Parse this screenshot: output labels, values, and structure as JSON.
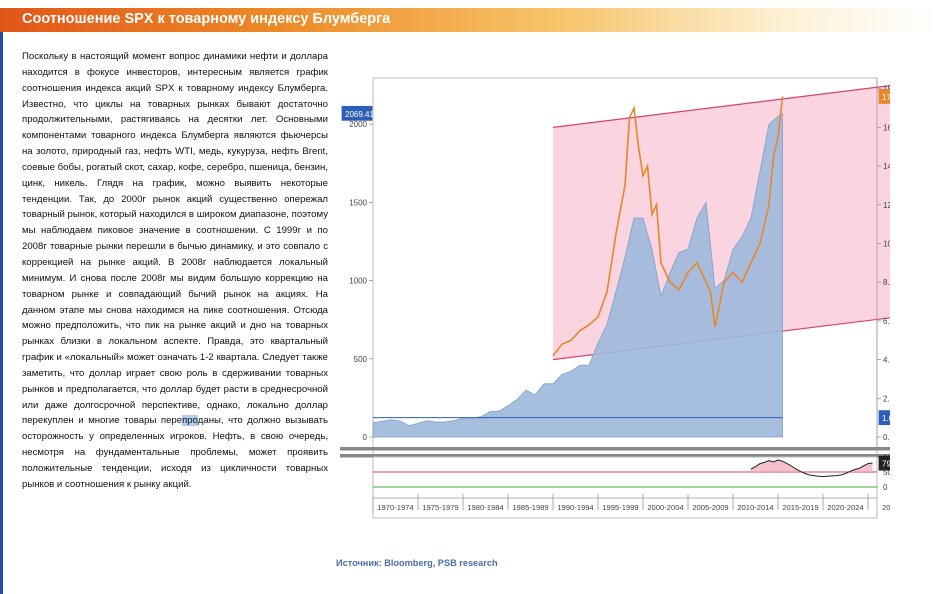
{
  "header": {
    "title": "Соотношение  SPX к товарному индексу Блумберга"
  },
  "body": {
    "before_highlight": "Поскольку в настоящий момент вопрос динамики нефти и доллара находится в фокусе инвесторов, интересным является график соотношения индекса акций SPX к товарному индексу Блумберга. Известно, что циклы на товарных рынках бывают достаточно продолжительными, растягиваясь на десятки лет. Основными компонентами товарного индекса Блумберга являются фьючерсы на золото, природный газ, нефть WTI, медь, кукуруза, нефть Brent, соевые бобы, рогатый скот, сахар, кофе, серебро, пшеница, бензин, цинк, никель.  Глядя на график, можно выявить некоторые тенденции. Так, до 2000г рынок акций существенно опережал товарный рынок, который находился в широком диапазоне, поэтому мы наблюдаем пиковое значение в соотношении. С 1999г и по 2008г товарные рынки перешли в бычью динамику, и это совпало  с коррекцией на рынке акций. В 2008г наблюдается локальный минимум. И снова после 2008г мы видим большую коррекцию на товарном рынке и совпадающий бычий рынок на акциях. На данном этапе мы снова находимся на пике соотношения. Отсюда можно предположить, что пик на рынке акций и дно на товарных рынках близки в локальном аспекте. Правда, это квартальный график и «локальный» может означать 1-2 квартала. Следует также заметить, что доллар играет свою роль в сдерживании товарных рынков и предполагается, что доллар будет расти в среднесрочной или даже долгосрочной перспективе, однако, локально доллар перекуплен и многие товары пере",
    "highlight": "про",
    "after_highlight": "даны, что должно вызывать осторожность у определенных игроков. Нефть, в свою очередь, несмотря на фундаментальные проблемы, может проявить положительные тенденции, исходя из цикличности товарных рынков и соотношения к рынку акций."
  },
  "source": "Источник: Bloomberg, PSB research",
  "chart_data": {
    "type": "area",
    "x_tick_labels": [
      "1970-1974",
      "1975-1979",
      "1980-1984",
      "1985-1989",
      "1990-1994",
      "1995-1999",
      "2000-2004",
      "2005-2009",
      "2010-2014",
      "2015-2019",
      "2020-2024",
      "2025"
    ],
    "xlim": [
      1970,
      2026
    ],
    "left_axis": {
      "ticks": [
        "0",
        "500",
        "1000",
        "1500",
        "2000"
      ],
      "ylim": [
        -100,
        2150
      ],
      "last_value": "2069.41"
    },
    "right_axis": {
      "ticks": [
        "0.00",
        "2.00",
        "4.00",
        "6.00",
        "8.00",
        "10.00",
        "12.00",
        "14.00",
        "16.00",
        "18.00"
      ],
      "ylim": [
        -0.6,
        18.2
      ],
      "last_value": "17.6004",
      "line_label": "1.00"
    },
    "lower_panel": {
      "ticks": [
        "0",
        "50",
        "100"
      ],
      "last_value": "79.5226"
    },
    "series": [
      {
        "axis": "left",
        "color": "#8fb0d8",
        "x": [
          1970,
          1971,
          1972,
          1973,
          1974,
          1975,
          1976,
          1977,
          1978,
          1979,
          1980,
          1981,
          1982,
          1983,
          1984,
          1985,
          1986,
          1987,
          1988,
          1989,
          1990,
          1991,
          1992,
          1993,
          1994,
          1995,
          1996,
          1997,
          1998,
          1999,
          2000,
          2001,
          2002,
          2003,
          2004,
          2005,
          2006,
          2007,
          2008,
          2009,
          2010,
          2011,
          2012,
          2013,
          2014,
          2015,
          2015.5
        ],
        "values": [
          92,
          100,
          110,
          102,
          72,
          88,
          104,
          96,
          96,
          104,
          122,
          120,
          130,
          162,
          165,
          200,
          240,
          300,
          270,
          340,
          340,
          400,
          420,
          460,
          460,
          600,
          720,
          930,
          1150,
          1400,
          1400,
          1200,
          900,
          1050,
          1180,
          1200,
          1400,
          1500,
          950,
          1000,
          1200,
          1280,
          1400,
          1700,
          2000,
          2050,
          2069
        ]
      },
      {
        "axis": "right",
        "color": "#e8862a",
        "x": [
          1990,
          1991,
          1992,
          1993,
          1994,
          1995,
          1996,
          1997,
          1998,
          1998.5,
          1999,
          1999.5,
          2000,
          2000.5,
          2001,
          2001.5,
          2002,
          2003,
          2003.5,
          2004,
          2005,
          2006,
          2007,
          2007.5,
          2008,
          2008.5,
          2009,
          2010,
          2011,
          2012,
          2013,
          2014,
          2014.5,
          2015,
          2015.5
        ],
        "values": [
          4.2,
          4.8,
          5.0,
          5.5,
          5.8,
          6.2,
          7.5,
          10.5,
          13.0,
          16.5,
          17.0,
          15.0,
          13.5,
          14.0,
          11.5,
          12.0,
          9.0,
          8.0,
          7.8,
          7.6,
          8.5,
          9.0,
          8.0,
          7.5,
          5.7,
          6.8,
          8.0,
          8.5,
          8.0,
          9.0,
          10.0,
          12.0,
          14.5,
          15.5,
          17.6
        ]
      },
      {
        "axis": "lower",
        "color": "#222222",
        "x": [
          2012,
          2012.5,
          2013,
          2013.5,
          2014,
          2014.5,
          2015,
          2015.5,
          2016,
          2016.5,
          2017,
          2017.5,
          2018,
          2018.5,
          2019,
          2019.5,
          2020,
          2020.5,
          2021,
          2021.5,
          2022,
          2022.5,
          2023,
          2023.5,
          2024,
          2024.5,
          2025,
          2025.5
        ],
        "values": [
          60,
          68,
          78,
          82,
          88,
          84,
          90,
          86,
          78,
          70,
          60,
          52,
          45,
          40,
          38,
          36,
          35,
          36,
          37,
          38,
          40,
          45,
          52,
          58,
          62,
          70,
          78,
          80
        ]
      }
    ],
    "channel": {
      "x": [
        1990,
        2042
      ],
      "upper": [
        16.0,
        19.0
      ],
      "lower": [
        4.0,
        7.0
      ]
    }
  }
}
